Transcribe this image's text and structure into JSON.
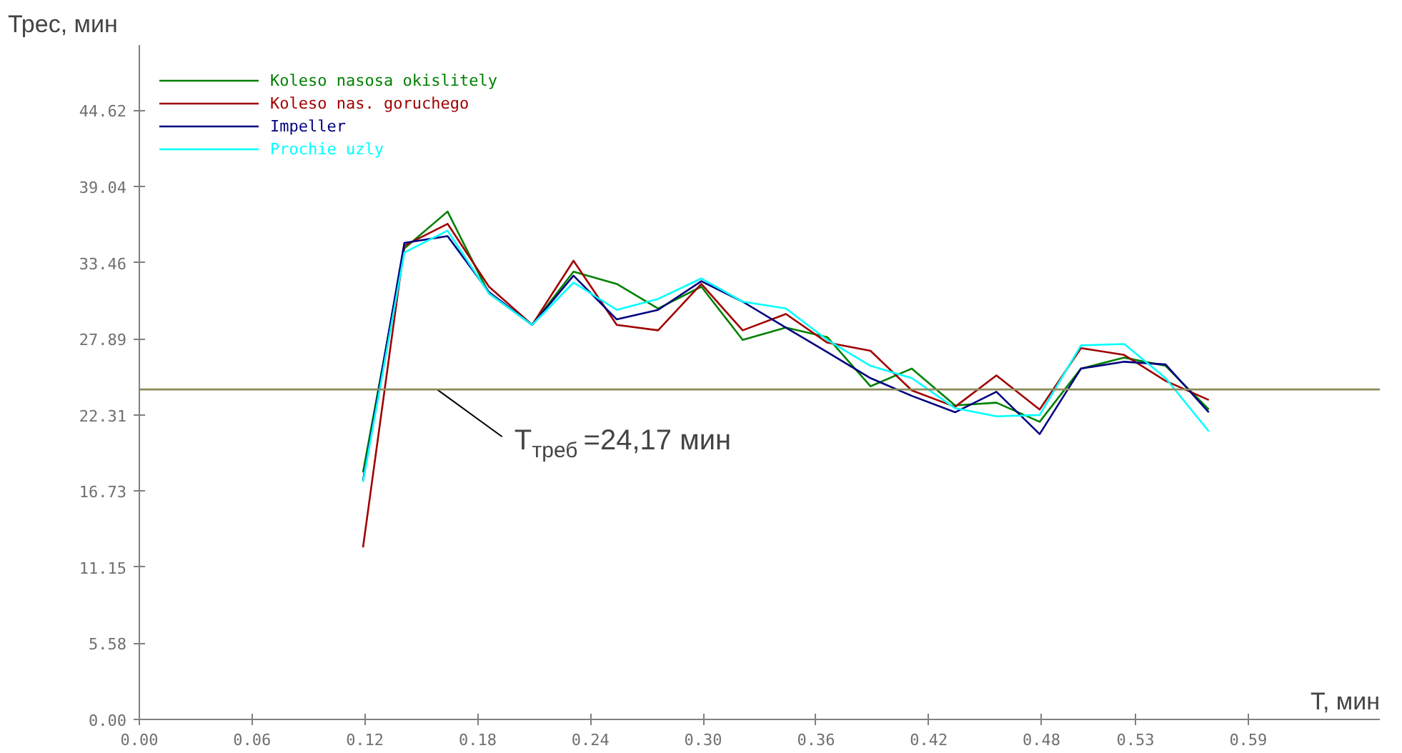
{
  "chart_data": {
    "type": "line",
    "xlabel": "T, мин",
    "ylabel": "Трес, мин",
    "x": [
      0.119,
      0.141,
      0.164,
      0.186,
      0.209,
      0.231,
      0.254,
      0.276,
      0.299,
      0.321,
      0.344,
      0.366,
      0.389,
      0.411,
      0.434,
      0.456,
      0.479,
      0.501,
      0.524,
      0.546,
      0.569
    ],
    "series": [
      {
        "name": "Koleso nasosa okislitely",
        "color": "#008000",
        "values": [
          18.1,
          34.5,
          37.2,
          31.2,
          28.9,
          32.8,
          31.9,
          30.1,
          31.7,
          27.8,
          28.7,
          28.0,
          24.4,
          25.7,
          23.0,
          23.2,
          21.8,
          25.7,
          26.5,
          25.9,
          22.7
        ]
      },
      {
        "name": "Koleso nas. goruchego",
        "color": "#a00000",
        "values": [
          12.6,
          34.7,
          36.3,
          31.7,
          28.9,
          33.6,
          28.9,
          28.5,
          31.9,
          28.5,
          29.7,
          27.6,
          27.0,
          24.1,
          22.9,
          25.2,
          22.7,
          27.2,
          26.7,
          24.8,
          23.4
        ]
      },
      {
        "name": "Impeller",
        "color": "#000080",
        "values": [
          17.5,
          34.9,
          35.4,
          31.3,
          28.9,
          32.5,
          29.3,
          30.0,
          32.1,
          30.6,
          28.7,
          26.9,
          25.0,
          23.7,
          22.5,
          24.0,
          20.9,
          25.7,
          26.2,
          26.0,
          22.5
        ]
      },
      {
        "name": "Prochie uzly",
        "color": "#00ffff",
        "values": [
          17.4,
          34.2,
          35.8,
          31.2,
          28.9,
          32.0,
          30.0,
          30.8,
          32.3,
          30.6,
          30.1,
          27.8,
          25.9,
          25.0,
          22.8,
          22.2,
          22.3,
          27.4,
          27.5,
          25.0,
          21.1
        ]
      }
    ],
    "xlim": [
      0,
      0.66
    ],
    "ylim": [
      0,
      49.4
    ],
    "xticks": [
      {
        "value": 0,
        "label": "0.00"
      },
      {
        "value": 0.06,
        "label": "0.06"
      },
      {
        "value": 0.12,
        "label": "0.12"
      },
      {
        "value": 0.18,
        "label": "0.18"
      },
      {
        "value": 0.24,
        "label": "0.24"
      },
      {
        "value": 0.3,
        "label": "0.30"
      },
      {
        "value": 0.36,
        "label": "0.36"
      },
      {
        "value": 0.42,
        "label": "0.42"
      },
      {
        "value": 0.48,
        "label": "0.48"
      },
      {
        "value": 0.53,
        "label": "0.53"
      },
      {
        "value": 0.59,
        "label": "0.59"
      }
    ],
    "yticks": [
      {
        "value": 0,
        "label": "0.00"
      },
      5.58,
      11.15,
      16.73,
      22.31,
      27.89,
      33.46,
      39.04,
      44.62
    ],
    "ref_lines": [
      {
        "axis": "y",
        "value": 24.17,
        "label": "T$_{треб}$ =24,17 мин",
        "color": "#8b8b5a"
      }
    ],
    "grid": false,
    "legend": "top left",
    "marker": "none",
    "line_style": "solid"
  }
}
